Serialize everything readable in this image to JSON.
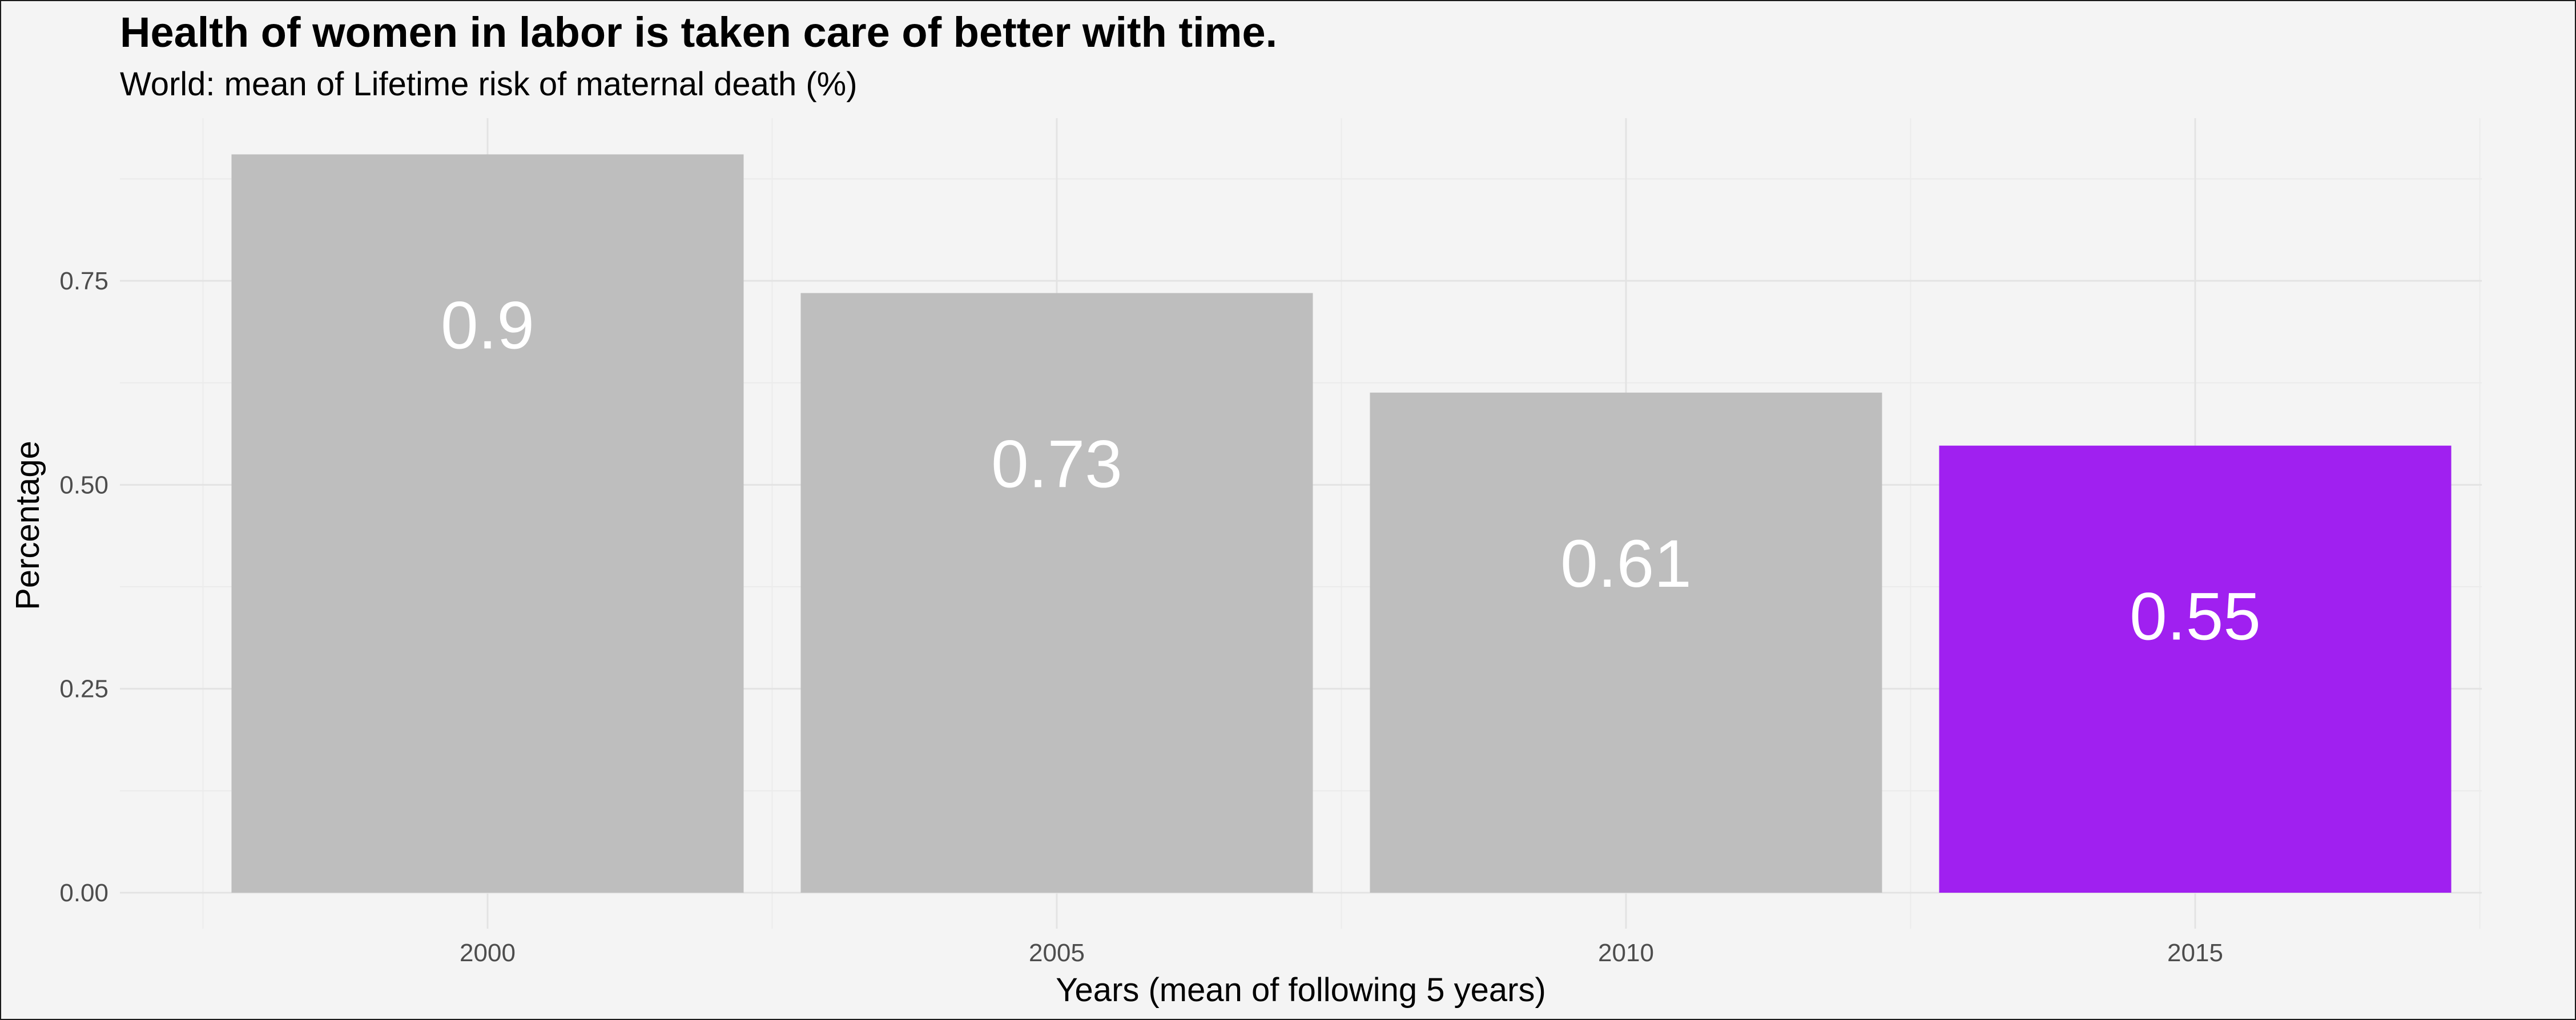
{
  "chart_data": {
    "type": "bar",
    "title": "Health of women in labor is taken care of better with time.",
    "subtitle": "World: mean of Lifetime risk of maternal death (%)",
    "xlabel": "Years (mean of following 5 years)",
    "ylabel": "Percentage",
    "categories": [
      "2000",
      "2005",
      "2010",
      "2015"
    ],
    "values": [
      0.905,
      0.735,
      0.613,
      0.548
    ],
    "data_labels": [
      "0.9",
      "0.73",
      "0.61",
      "0.55"
    ],
    "bar_colors": [
      "#bebebe",
      "#bebebe",
      "#bebebe",
      "#a020f0"
    ],
    "y_ticks": [
      0,
      0.25,
      0.5,
      0.75
    ],
    "y_tick_labels": [
      "0.00",
      "0.25",
      "0.50",
      "0.75"
    ],
    "ylim": [
      0,
      0.95
    ],
    "grid": true,
    "legend": "none"
  }
}
